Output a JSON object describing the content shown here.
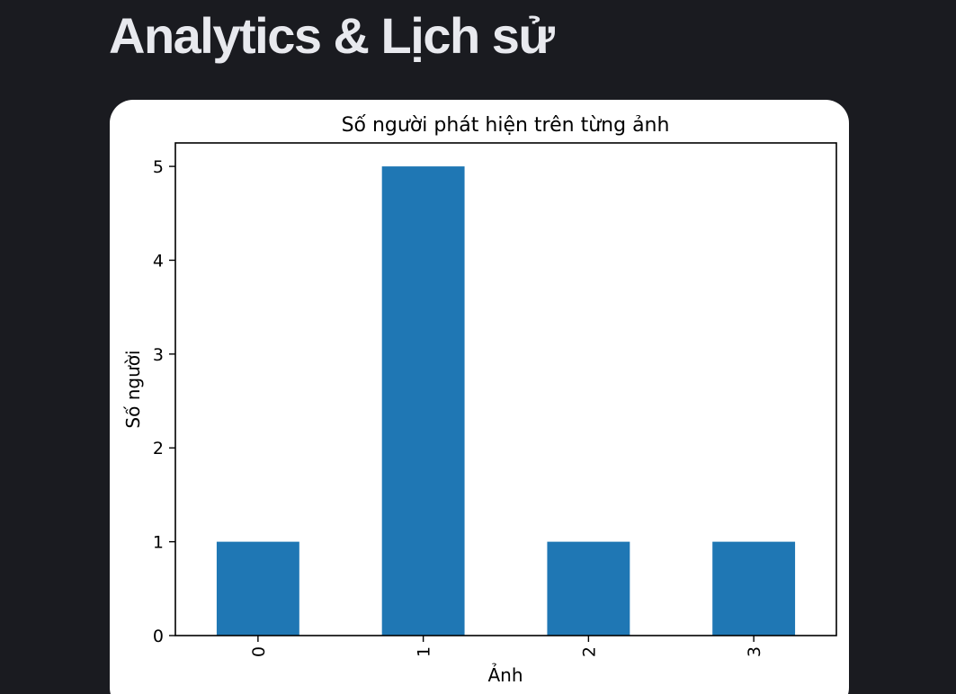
{
  "page": {
    "title": "Analytics & Lịch sử"
  },
  "colors": {
    "background": "#1a1b20",
    "card": "#ffffff",
    "bar": "#1f77b4",
    "title_text": "#e8e9ee"
  },
  "chart_data": {
    "type": "bar",
    "title": "Số người phát hiện trên từng ảnh",
    "xlabel": "Ảnh",
    "ylabel": "Số người",
    "categories": [
      "0",
      "1",
      "2",
      "3"
    ],
    "values": [
      1,
      5,
      1,
      1
    ],
    "ylim": [
      0,
      5.25
    ],
    "yticks": [
      0,
      1,
      2,
      3,
      4,
      5
    ],
    "xtick_rotation": 90,
    "grid": false,
    "legend": "none"
  }
}
